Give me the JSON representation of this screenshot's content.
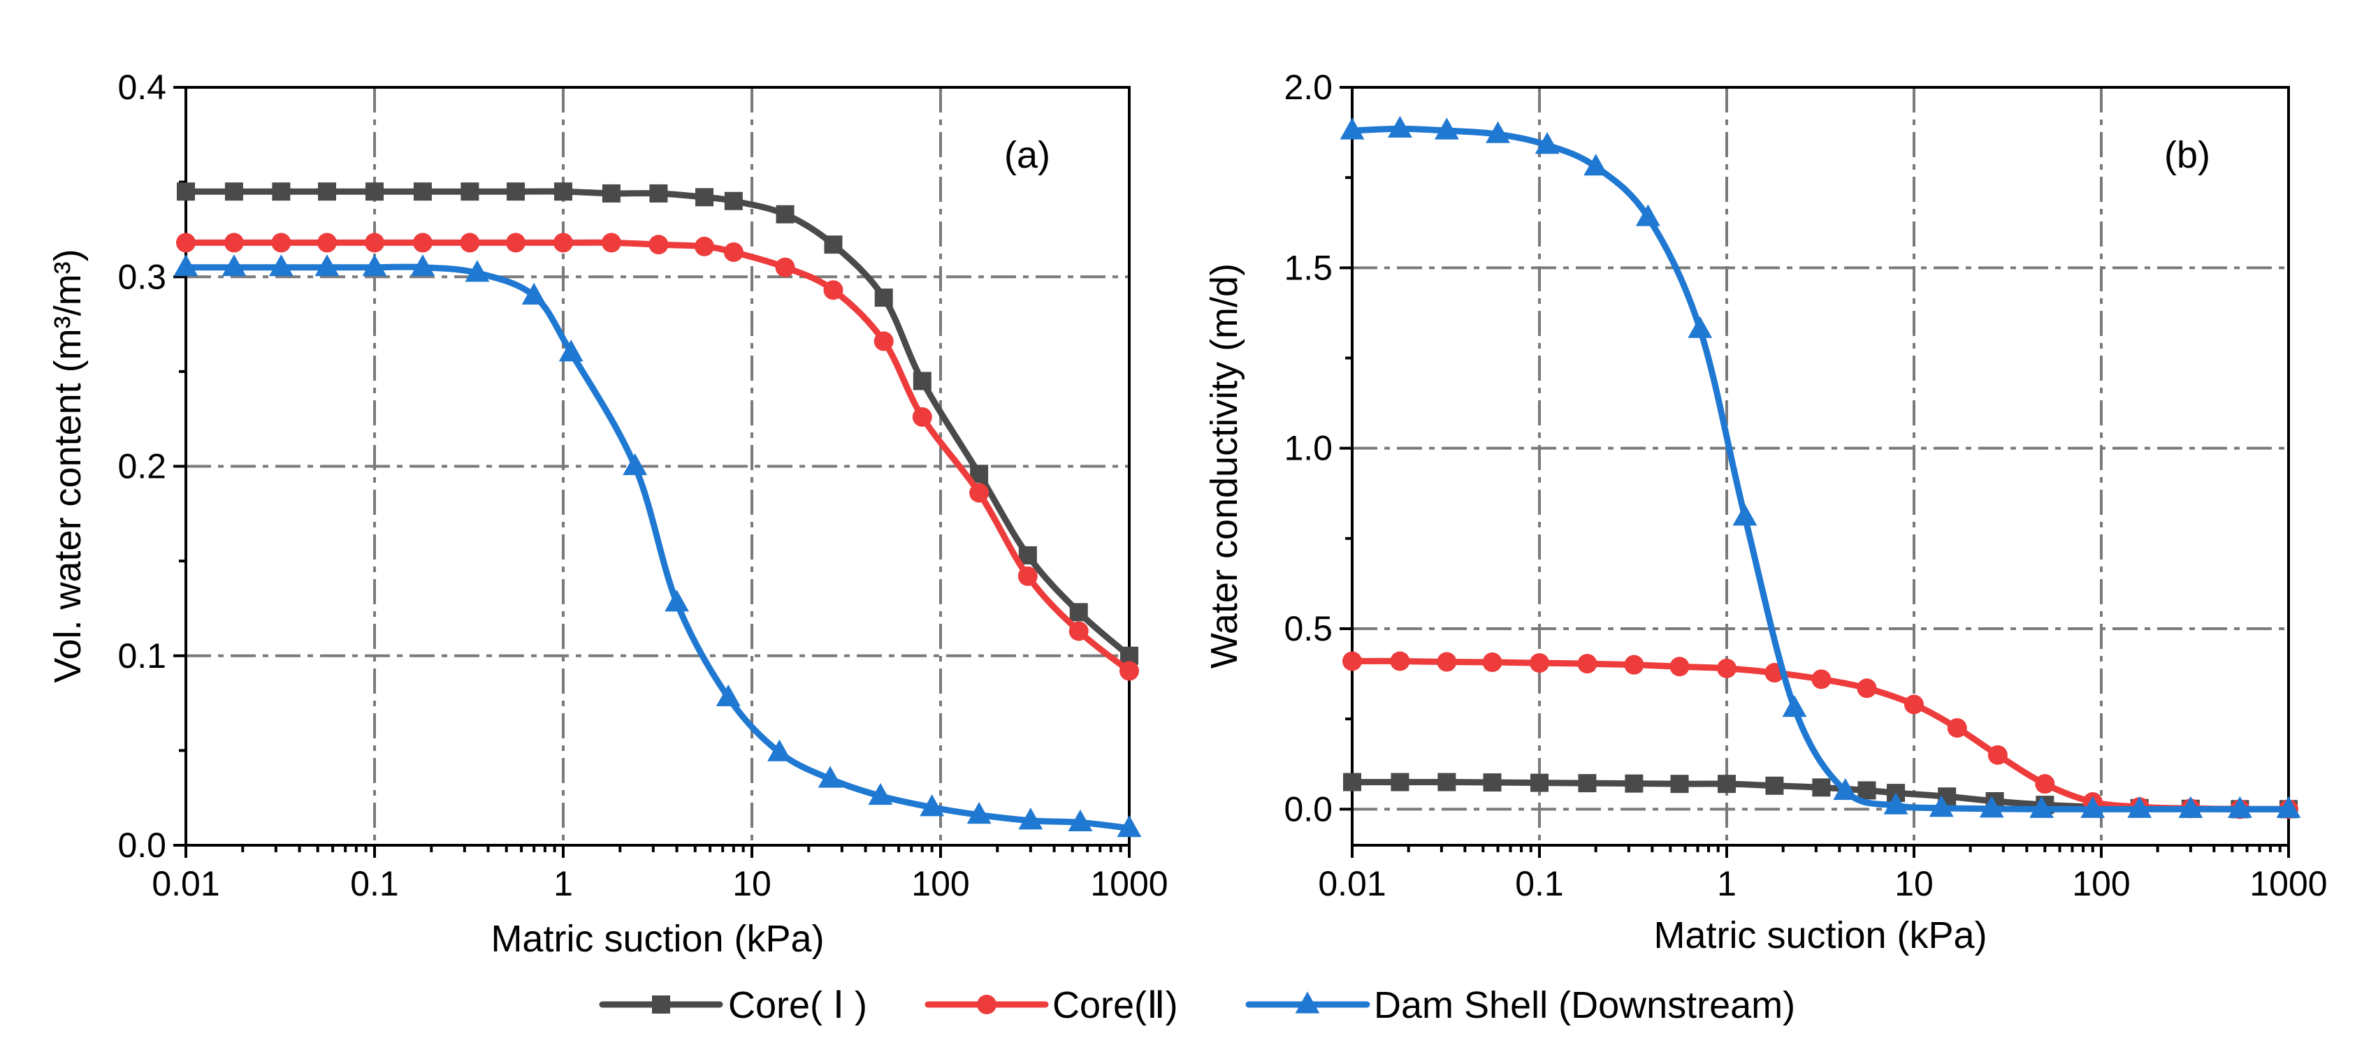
{
  "chart_data": [
    {
      "type": "line",
      "panel_label": "(a)",
      "xlabel": "Matric suction (kPa)",
      "ylabel": "Vol. water content (m³/m³)",
      "xscale": "log",
      "xlim": [
        0.01,
        1000
      ],
      "ylim": [
        0.0,
        0.4
      ],
      "xticks": [
        0.01,
        0.1,
        1,
        10,
        100,
        1000
      ],
      "xtick_labels": [
        "0.01",
        "0.1",
        "1",
        "10",
        "100",
        "1000"
      ],
      "yticks": [
        0.0,
        0.1,
        0.2,
        0.3,
        0.4
      ],
      "ytick_labels": [
        "0.0",
        "0.1",
        "0.2",
        "0.3",
        "0.4"
      ],
      "grid": true,
      "series": [
        {
          "name": "Core( Ⅰ )",
          "color": "#4a4a4a",
          "marker": "square",
          "x": [
            0.01,
            0.018,
            0.032,
            0.056,
            0.1,
            0.18,
            0.32,
            0.56,
            1.0,
            1.8,
            3.2,
            5.6,
            8.0,
            15,
            27,
            50,
            80,
            160,
            290,
            540,
            1000
          ],
          "y": [
            0.345,
            0.345,
            0.345,
            0.345,
            0.345,
            0.345,
            0.345,
            0.345,
            0.345,
            0.344,
            0.344,
            0.342,
            0.34,
            0.333,
            0.317,
            0.289,
            0.245,
            0.196,
            0.153,
            0.123,
            0.1
          ]
        },
        {
          "name": "Core(Ⅱ)",
          "color": "#ee3b3b",
          "marker": "circle",
          "x": [
            0.01,
            0.018,
            0.032,
            0.056,
            0.1,
            0.18,
            0.32,
            0.56,
            1.0,
            1.8,
            3.2,
            5.6,
            8.0,
            15,
            27,
            50,
            80,
            160,
            290,
            540,
            1000
          ],
          "y": [
            0.318,
            0.318,
            0.318,
            0.318,
            0.318,
            0.318,
            0.318,
            0.318,
            0.318,
            0.318,
            0.317,
            0.316,
            0.313,
            0.305,
            0.293,
            0.266,
            0.226,
            0.186,
            0.142,
            0.113,
            0.092
          ]
        },
        {
          "name": "Dam Shell (Downstream)",
          "color": "#1f78d1",
          "marker": "triangle",
          "x": [
            0.01,
            0.018,
            0.032,
            0.056,
            0.1,
            0.18,
            0.35,
            0.7,
            1.1,
            2.4,
            4.0,
            7.5,
            14,
            26,
            48,
            90,
            160,
            300,
            550,
            1000
          ],
          "y": [
            0.305,
            0.305,
            0.305,
            0.305,
            0.305,
            0.305,
            0.302,
            0.29,
            0.26,
            0.2,
            0.128,
            0.078,
            0.049,
            0.035,
            0.026,
            0.02,
            0.016,
            0.013,
            0.012,
            0.009
          ]
        }
      ]
    },
    {
      "type": "line",
      "panel_label": "(b)",
      "xlabel": "Matric suction (kPa)",
      "ylabel": "Water conductivity (m/d)",
      "xscale": "log",
      "xlim": [
        0.01,
        1000
      ],
      "ylim": [
        -0.1,
        2.0
      ],
      "xticks": [
        0.01,
        0.1,
        1,
        10,
        100,
        1000
      ],
      "xtick_labels": [
        "0.01",
        "0.1",
        "1",
        "10",
        "100",
        "1000"
      ],
      "yticks": [
        0.0,
        0.5,
        1.0,
        1.5,
        2.0
      ],
      "ytick_labels": [
        "0.0",
        "0.5",
        "1.0",
        "1.5",
        "2.0"
      ],
      "grid": true,
      "series": [
        {
          "name": "Core( Ⅰ )",
          "color": "#4a4a4a",
          "marker": "square",
          "x": [
            0.01,
            0.018,
            0.032,
            0.056,
            0.1,
            0.18,
            0.32,
            0.56,
            1.0,
            1.8,
            3.2,
            5.6,
            8.0,
            15,
            27,
            50,
            90,
            160,
            300,
            550,
            1000
          ],
          "y": [
            0.075,
            0.075,
            0.075,
            0.074,
            0.073,
            0.072,
            0.071,
            0.07,
            0.07,
            0.065,
            0.06,
            0.052,
            0.045,
            0.035,
            0.022,
            0.012,
            0.006,
            0.003,
            0.001,
            0.0,
            0.0
          ]
        },
        {
          "name": "Core(Ⅱ)",
          "color": "#ee3b3b",
          "marker": "circle",
          "x": [
            0.01,
            0.018,
            0.032,
            0.056,
            0.1,
            0.18,
            0.32,
            0.56,
            1.0,
            1.8,
            3.2,
            5.6,
            10,
            17,
            28,
            50,
            90,
            160,
            300,
            550,
            1000
          ],
          "y": [
            0.41,
            0.41,
            0.408,
            0.407,
            0.405,
            0.403,
            0.4,
            0.395,
            0.39,
            0.378,
            0.36,
            0.335,
            0.29,
            0.225,
            0.15,
            0.07,
            0.02,
            0.006,
            0.002,
            0.0,
            0.0
          ]
        },
        {
          "name": "Dam Shell (Downstream)",
          "color": "#1f78d1",
          "marker": "triangle",
          "x": [
            0.01,
            0.018,
            0.032,
            0.06,
            0.11,
            0.2,
            0.38,
            0.72,
            1.25,
            2.3,
            4.3,
            8.0,
            14,
            26,
            48,
            90,
            160,
            300,
            550,
            1000
          ],
          "y": [
            1.88,
            1.885,
            1.88,
            1.87,
            1.84,
            1.78,
            1.64,
            1.33,
            0.81,
            0.28,
            0.05,
            0.01,
            0.003,
            0.001,
            0.0,
            0.0,
            0.0,
            0.0,
            0.0,
            0.0
          ]
        }
      ]
    }
  ],
  "legend": {
    "position": "bottom-center",
    "entries": [
      {
        "label": "Core( Ⅰ )",
        "color": "#4a4a4a",
        "marker": "square"
      },
      {
        "label": "Core(Ⅱ)",
        "color": "#ee3b3b",
        "marker": "circle"
      },
      {
        "label": "Dam Shell (Downstream)",
        "color": "#1f78d1",
        "marker": "triangle"
      }
    ]
  }
}
